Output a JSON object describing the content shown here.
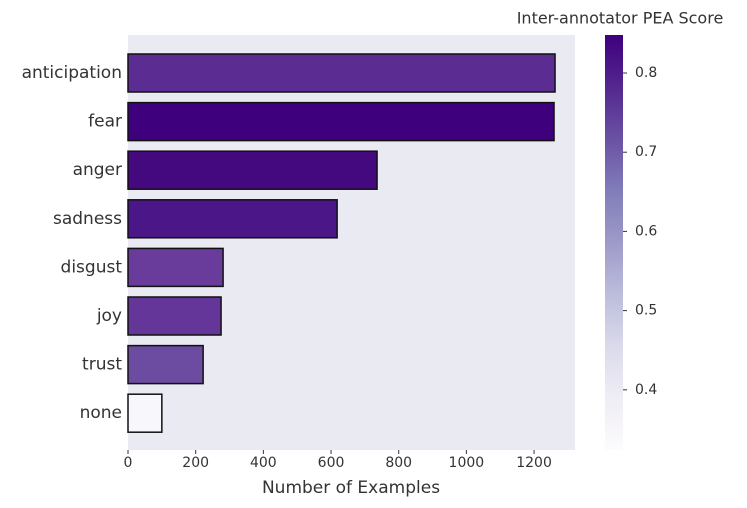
{
  "chart_data": {
    "type": "barh",
    "categories": [
      "anticipation",
      "fear",
      "anger",
      "sadness",
      "disgust",
      "joy",
      "trust",
      "none"
    ],
    "values": [
      1262,
      1259,
      736,
      618,
      281,
      275,
      222,
      100
    ],
    "colors": [
      "#5b2c91",
      "#3f007d",
      "#45097f",
      "#4b1687",
      "#693b9a",
      "#653699",
      "#6c4ca1",
      "#f8f7fb"
    ],
    "xlabel": "Number of Examples",
    "xlim": [
      0,
      1321
    ],
    "xticks": [
      0,
      200,
      400,
      600,
      800,
      1000,
      1200
    ],
    "grid": false,
    "colorbar": {
      "label": "Inter-annotator PEA Score",
      "lim": [
        0.324,
        0.848
      ],
      "ticks": [
        0.4,
        0.5,
        0.6,
        0.7,
        0.8
      ],
      "colors": [
        "#fcfbfd",
        "#efedf5",
        "#dadaeb",
        "#bcbddc",
        "#9e9ac8",
        "#807dba",
        "#6a51a3",
        "#54278f",
        "#3f007d"
      ]
    }
  }
}
